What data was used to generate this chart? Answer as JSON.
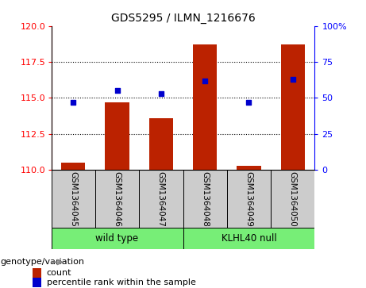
{
  "title": "GDS5295 / ILMN_1216676",
  "samples": [
    "GSM1364045",
    "GSM1364046",
    "GSM1364047",
    "GSM1364048",
    "GSM1364049",
    "GSM1364050"
  ],
  "groups": [
    "wild type",
    "wild type",
    "wild type",
    "KLHL40 null",
    "KLHL40 null",
    "KLHL40 null"
  ],
  "bar_color": "#bb2200",
  "marker_color": "#0000cc",
  "bar_values": [
    110.5,
    114.7,
    113.6,
    118.7,
    110.3,
    118.7
  ],
  "percentile_values": [
    47,
    55,
    53,
    62,
    47,
    63
  ],
  "ylim_left": [
    110,
    120
  ],
  "ylim_right": [
    0,
    100
  ],
  "yticks_left": [
    110,
    112.5,
    115,
    117.5,
    120
  ],
  "yticks_right": [
    0,
    25,
    50,
    75,
    100
  ],
  "bar_bottom": 110,
  "legend_count_label": "count",
  "legend_pct_label": "percentile rank within the sample",
  "genotype_label": "genotype/variation",
  "tick_area_bg": "#cccccc",
  "group_color": "#77ee77"
}
